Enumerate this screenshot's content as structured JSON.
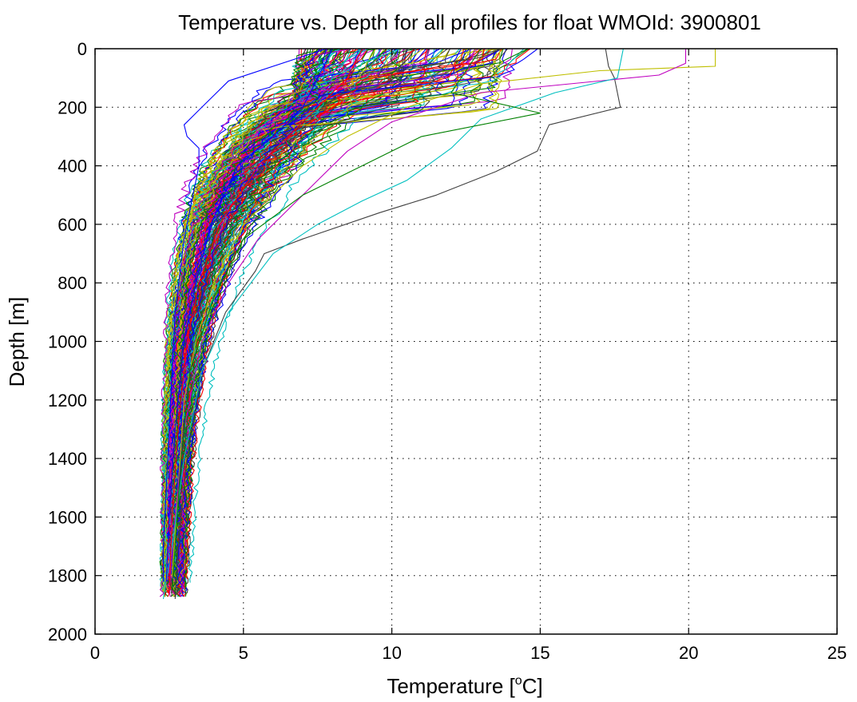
{
  "chart_data": {
    "type": "line",
    "title": "Temperature vs. Depth for all profiles for float WMOId: 3900801",
    "xlabel_text": "Temperature [",
    "xlabel_sup": "o",
    "xlabel_unit": "C]",
    "ylabel": "Depth [m]",
    "xlim": [
      0,
      25
    ],
    "ylim": [
      0,
      2000
    ],
    "y_reversed": true,
    "grid": true,
    "legend": "none",
    "x_ticks": [
      "0",
      "5",
      "10",
      "15",
      "20",
      "25"
    ],
    "y_ticks": [
      "0",
      "200",
      "400",
      "600",
      "800",
      "1000",
      "1200",
      "1400",
      "1600",
      "1800",
      "2000"
    ],
    "palette": [
      "#0000ff",
      "#008000",
      "#ff0000",
      "#00bfbf",
      "#bf00bf",
      "#bfbf00",
      "#404040"
    ],
    "representative_profiles": [
      {
        "color": "#404040",
        "depth": [
          0,
          60,
          100,
          200,
          260,
          350,
          420,
          500,
          560,
          650,
          700,
          760,
          900,
          1100,
          1400,
          1700,
          1880
        ],
        "temp": [
          17.2,
          17.3,
          17.5,
          17.7,
          15.3,
          14.9,
          13.5,
          11.5,
          9.6,
          7.0,
          5.7,
          5.4,
          4.4,
          3.6,
          3.1,
          2.8,
          2.7
        ]
      },
      {
        "color": "#bfbf00",
        "depth": [
          0,
          60,
          75,
          120,
          200,
          300,
          400,
          500,
          600,
          800,
          1000,
          1200,
          1500,
          1800
        ],
        "temp": [
          20.9,
          20.9,
          17.0,
          13.0,
          10.5,
          8.5,
          7.0,
          6.0,
          5.0,
          4.0,
          3.4,
          3.0,
          2.8,
          2.6
        ]
      },
      {
        "color": "#bf00bf",
        "depth": [
          0,
          50,
          90,
          150,
          250,
          350,
          450,
          550,
          650,
          800,
          1000,
          1300,
          1600,
          1850
        ],
        "temp": [
          19.9,
          19.9,
          19.0,
          13.0,
          10.0,
          8.5,
          7.5,
          6.5,
          5.5,
          4.5,
          3.6,
          3.0,
          2.7,
          2.5
        ]
      },
      {
        "color": "#00bfbf",
        "depth": [
          0,
          100,
          150,
          240,
          340,
          450,
          520,
          600,
          700,
          900,
          1100,
          1400,
          1700,
          1880
        ],
        "temp": [
          17.8,
          17.6,
          15.5,
          13.0,
          12.0,
          10.5,
          9.0,
          7.5,
          6.0,
          4.5,
          3.6,
          3.0,
          2.6,
          2.3
        ]
      },
      {
        "color": "#0000ff",
        "depth": [
          0,
          100,
          200,
          300,
          400,
          600,
          800,
          1000,
          1300,
          1600,
          1820
        ],
        "temp": [
          8.0,
          7.5,
          7.0,
          6.0,
          4.8,
          3.9,
          3.4,
          3.0,
          2.7,
          2.5,
          2.4
        ]
      },
      {
        "color": "#0000ff",
        "depth": [
          0,
          110,
          160,
          220,
          260,
          300,
          340,
          400,
          500,
          650,
          900,
          1300,
          1700,
          1820
        ],
        "temp": [
          7.8,
          4.5,
          4.0,
          3.4,
          3.0,
          3.1,
          3.5,
          3.5,
          3.3,
          3.0,
          2.7,
          2.5,
          2.3,
          2.3
        ]
      },
      {
        "color": "#ff0000",
        "depth": [
          0,
          100,
          200,
          300,
          400,
          600,
          800,
          1000,
          1300,
          1600,
          1850
        ],
        "temp": [
          9.0,
          8.5,
          7.5,
          6.5,
          5.5,
          4.2,
          3.5,
          3.1,
          2.8,
          2.6,
          2.5
        ]
      },
      {
        "color": "#008000",
        "depth": [
          0,
          150,
          220,
          300,
          400,
          500,
          650,
          850,
          1100,
          1400,
          1700,
          1850
        ],
        "temp": [
          13.0,
          12.0,
          15.0,
          11.0,
          9.0,
          7.0,
          5.0,
          4.0,
          3.2,
          2.9,
          2.7,
          2.6
        ]
      }
    ]
  }
}
